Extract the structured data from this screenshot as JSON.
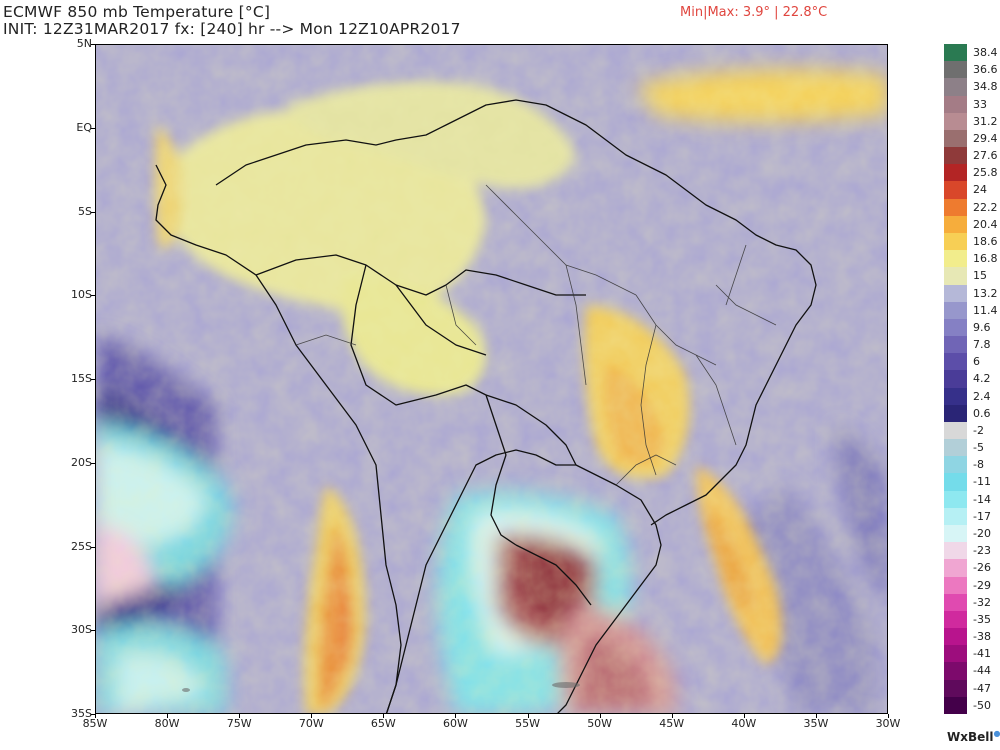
{
  "header": {
    "title": "ECMWF 850 mb Temperature [°C]",
    "init_line": "INIT: 12Z31MAR2017 fx: [240] hr --> Mon 12Z10APR2017",
    "minmax": "Min|Max: 3.9° | 22.8°C"
  },
  "axes": {
    "lat_labels": [
      "5N",
      "EQ",
      "5S",
      "10S",
      "15S",
      "20S",
      "25S",
      "30S",
      "35S"
    ],
    "lon_labels": [
      "85W",
      "80W",
      "75W",
      "70W",
      "65W",
      "60W",
      "55W",
      "50W",
      "45W",
      "40W",
      "35W",
      "30W"
    ]
  },
  "legend": {
    "labels": [
      "38.4",
      "36.6",
      "34.8",
      "33",
      "31.2",
      "29.4",
      "27.6",
      "25.8",
      "24",
      "22.2",
      "20.4",
      "18.6",
      "16.8",
      "15",
      "13.2",
      "11.4",
      "9.6",
      "7.8",
      "6",
      "4.2",
      "2.4",
      "0.6",
      "-2",
      "-5",
      "-8",
      "-11",
      "-14",
      "-17",
      "-20",
      "-23",
      "-26",
      "-29",
      "-32",
      "-35",
      "-38",
      "-41",
      "-44",
      "-47",
      "-50"
    ],
    "colors": [
      "#2a7a52",
      "#6f6f6f",
      "#8d8088",
      "#a47c86",
      "#b88c92",
      "#9a6f6f",
      "#8f3a3a",
      "#b32525",
      "#d9472a",
      "#ee7b2f",
      "#f6ad3c",
      "#f7cf55",
      "#f2ed8c",
      "#e7e8b5",
      "#b5b8d8",
      "#9797cc",
      "#8580c4",
      "#7065b6",
      "#5c4ea9",
      "#4a3c98",
      "#36308a",
      "#2a2576",
      "#d8d8d8",
      "#b2cfd8",
      "#8fd5e3",
      "#74dcea",
      "#8ee8f0",
      "#b6f0f4",
      "#d7f5f6",
      "#f0d8e8",
      "#f0a6d2",
      "#ec78c0",
      "#e04ab0",
      "#d02a9e",
      "#b8148d",
      "#9d0d7d",
      "#7d0a6c",
      "#5f0a5c",
      "#44004a"
    ]
  },
  "brand": "WxBell"
}
